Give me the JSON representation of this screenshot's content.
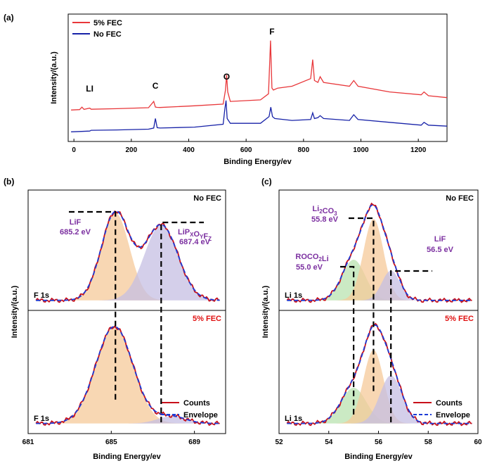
{
  "chart_data": [
    {
      "type": "line",
      "panel_label": "(a)",
      "xlabel": "Binding Energy/ev",
      "ylabel": "Intensity/(a.u.)",
      "xlim": [
        -20,
        1300
      ],
      "xticks": [
        0,
        200,
        400,
        600,
        800,
        1000,
        1200
      ],
      "legend": {
        "placement": "top-left"
      },
      "annotations": [
        {
          "text": "LI",
          "x": 55
        },
        {
          "text": "C",
          "x": 284
        },
        {
          "text": "O",
          "x": 532
        },
        {
          "text": "F",
          "x": 690
        }
      ],
      "series": [
        {
          "name": "5% FEC",
          "color": "#e8373a",
          "x": [
            -10,
            20,
            28,
            35,
            55,
            60,
            150,
            260,
            278,
            284,
            290,
            300,
            420,
            520,
            528,
            532,
            536,
            545,
            650,
            678,
            685,
            690,
            695,
            710,
            760,
            825,
            832,
            838,
            850,
            858,
            870,
            960,
            975,
            990,
            1100,
            1210,
            1220,
            1235,
            1300
          ],
          "y": [
            1.25,
            1.27,
            1.4,
            1.28,
            1.35,
            1.29,
            1.32,
            1.37,
            1.7,
            1.4,
            1.39,
            1.38,
            1.47,
            1.56,
            2.3,
            3.1,
            2.2,
            1.7,
            1.78,
            2.1,
            4.9,
            2.4,
            2.3,
            2.4,
            2.5,
            2.9,
            3.9,
            2.8,
            2.7,
            3.0,
            2.7,
            2.5,
            2.8,
            2.5,
            2.2,
            2.05,
            2.2,
            2.0,
            1.9
          ]
        },
        {
          "name": "No FEC",
          "color": "#1722a8",
          "x": [
            -10,
            20,
            55,
            60,
            150,
            260,
            278,
            284,
            290,
            300,
            420,
            520,
            526,
            530,
            534,
            545,
            650,
            680,
            686,
            692,
            700,
            760,
            825,
            832,
            838,
            850,
            858,
            870,
            960,
            975,
            990,
            1100,
            1210,
            1220,
            1235,
            1300
          ],
          "y": [
            0.1,
            0.12,
            0.14,
            0.18,
            0.2,
            0.24,
            0.3,
            0.8,
            0.32,
            0.3,
            0.35,
            0.5,
            1.3,
            1.75,
            0.8,
            0.55,
            0.55,
            0.9,
            1.4,
            0.9,
            0.8,
            0.7,
            0.75,
            1.1,
            0.8,
            0.85,
            0.95,
            0.8,
            0.7,
            1.0,
            0.75,
            0.6,
            0.45,
            0.6,
            0.45,
            0.4
          ]
        }
      ]
    },
    {
      "type": "line",
      "panel_label": "(b)",
      "xlabel": "Binding Energy/ev",
      "ylabel": "Intensity/(a.u.)",
      "xlim": [
        681,
        690.5
      ],
      "xticks": [
        681,
        685,
        689
      ],
      "legend": {
        "placement": "bottom-right",
        "entries": [
          "Counts",
          "Envelope"
        ],
        "colors": [
          "#c8101a",
          "#1c3bd6"
        ]
      },
      "subplots": [
        {
          "position": "top",
          "title": "No FEC",
          "title_color": "#000000",
          "region_label": "F 1s",
          "components": [
            {
              "name": "LiF",
              "center": 685.2,
              "fwhm": 1.6,
              "height": 0.88,
              "fill": "#f5c99a"
            },
            {
              "name": "LiPxOyFz",
              "center": 687.4,
              "fwhm": 1.9,
              "height": 0.76,
              "fill": "#c5bfe3"
            }
          ],
          "peak_labels": [
            {
              "name": "LiF",
              "value": "685.2 eV"
            },
            {
              "name": "LiPxOyFz",
              "value": "687.4 eV"
            }
          ],
          "label_color": "#7b2fa0"
        },
        {
          "position": "bottom",
          "title": "5% FEC",
          "title_color": "#e01010",
          "region_label": "F 1s",
          "components": [
            {
              "name": "LiF",
              "center": 685.15,
              "fwhm": 2.1,
              "height": 0.95,
              "fill": "#f5c99a"
            },
            {
              "name": "LiPxOyFz",
              "center": 687.9,
              "fwhm": 1.6,
              "height": 0.07,
              "fill": "#c5bfe3"
            }
          ]
        }
      ]
    },
    {
      "type": "line",
      "panel_label": "(c)",
      "xlabel": "Binding Energy/ev",
      "ylabel": "Intensity/(a.u.)",
      "xlim": [
        52,
        60
      ],
      "xticks": [
        52,
        54,
        56,
        58,
        60
      ],
      "legend": {
        "placement": "bottom-right",
        "entries": [
          "Counts",
          "Envelope"
        ],
        "colors": [
          "#c8101a",
          "#1c3bd6"
        ]
      },
      "subplots": [
        {
          "position": "top",
          "title": "No FEC",
          "title_color": "#000000",
          "region_label": "Li 1s",
          "components": [
            {
              "name": "ROCO2Li",
              "center": 55.0,
              "fwhm": 1.1,
              "height": 0.41,
              "fill": "#b9e3b0"
            },
            {
              "name": "Li2CO3",
              "center": 55.8,
              "fwhm": 0.95,
              "height": 0.82,
              "fill": "#f5c99a"
            },
            {
              "name": "LiF",
              "center": 56.5,
              "fwhm": 0.85,
              "height": 0.3,
              "fill": "#c5bfe3"
            }
          ],
          "peak_labels": [
            {
              "name": "Li2CO3",
              "value": "55.8 eV"
            },
            {
              "name": "LiF",
              "value": "56.5 eV"
            },
            {
              "name": "ROCO2Li",
              "value": "55.0 eV"
            }
          ],
          "label_color": "#7b2fa0"
        },
        {
          "position": "bottom",
          "title": "5% FEC",
          "title_color": "#e01010",
          "region_label": "Li 1s",
          "components": [
            {
              "name": "ROCO2Li",
              "center": 55.0,
              "fwhm": 1.2,
              "height": 0.35,
              "fill": "#b9e3b0"
            },
            {
              "name": "Li2CO3",
              "center": 55.8,
              "fwhm": 0.95,
              "height": 0.72,
              "fill": "#f5c99a"
            },
            {
              "name": "LiF",
              "center": 56.5,
              "fwhm": 1.05,
              "height": 0.47,
              "fill": "#c5bfe3"
            }
          ]
        }
      ]
    }
  ]
}
